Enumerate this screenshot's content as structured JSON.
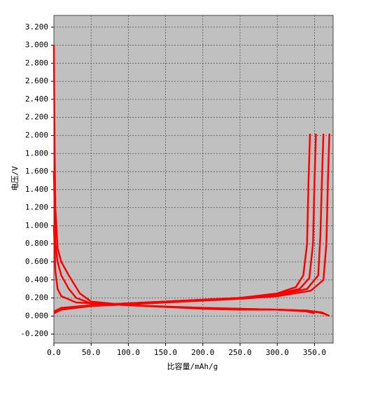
{
  "chart_data": {
    "type": "line",
    "x_label": "比容量/mAh/g",
    "y_label": "电压/V",
    "xlim": [
      0,
      375
    ],
    "ylim": [
      -0.3,
      3.33
    ],
    "xticks": [
      {
        "value": 0,
        "label": "0.0"
      },
      {
        "value": 50,
        "label": "50.0"
      },
      {
        "value": 100,
        "label": "100.0"
      },
      {
        "value": 150,
        "label": "150.0"
      },
      {
        "value": 200,
        "label": "200.0"
      },
      {
        "value": 250,
        "label": "250.0"
      },
      {
        "value": 300,
        "label": "300.0"
      },
      {
        "value": 350,
        "label": "350.0"
      }
    ],
    "yticks": [
      {
        "value": -0.2,
        "label": "-0.200"
      },
      {
        "value": 0,
        "label": "0.000"
      },
      {
        "value": 0.2,
        "label": "0.200"
      },
      {
        "value": 0.4,
        "label": "0.400"
      },
      {
        "value": 0.6,
        "label": "0.600"
      },
      {
        "value": 0.8,
        "label": "0.800"
      },
      {
        "value": 1,
        "label": "1.000"
      },
      {
        "value": 1.2,
        "label": "1.200"
      },
      {
        "value": 1.4,
        "label": "1.400"
      },
      {
        "value": 1.6,
        "label": "1.600"
      },
      {
        "value": 1.8,
        "label": "1.800"
      },
      {
        "value": 2,
        "label": "2.000"
      },
      {
        "value": 2.2,
        "label": "2.200"
      },
      {
        "value": 2.4,
        "label": "2.400"
      },
      {
        "value": 2.6,
        "label": "2.600"
      },
      {
        "value": 2.8,
        "label": "2.800"
      },
      {
        "value": 3,
        "label": "3.000"
      },
      {
        "value": 3.2,
        "label": "3.200"
      }
    ],
    "grid": true,
    "background": "#c0c0c0",
    "series": [
      {
        "color": "#ff0000",
        "x": [
          0,
          1,
          2,
          5,
          10,
          20,
          35,
          50,
          100,
          150,
          200,
          250,
          300,
          340,
          360,
          370
        ],
        "values": [
          3.0,
          1.8,
          1.2,
          0.75,
          0.6,
          0.45,
          0.25,
          0.16,
          0.12,
          0.1,
          0.08,
          0.07,
          0.07,
          0.06,
          0.04,
          0.0
        ]
      },
      {
        "color": "#ff0000",
        "x": [
          0,
          2,
          5,
          10,
          20,
          30,
          50,
          100,
          150,
          200,
          250,
          300,
          340,
          355,
          365
        ],
        "values": [
          1.6,
          0.8,
          0.6,
          0.45,
          0.3,
          0.2,
          0.14,
          0.12,
          0.1,
          0.09,
          0.08,
          0.07,
          0.06,
          0.04,
          0.02
        ]
      },
      {
        "color": "#ff0000",
        "x": [
          0,
          2,
          5,
          10,
          30,
          100,
          200,
          300,
          340,
          350
        ],
        "values": [
          1.0,
          0.5,
          0.3,
          0.22,
          0.15,
          0.12,
          0.09,
          0.07,
          0.05,
          0.03
        ]
      },
      {
        "color": "#ff0000",
        "x": [
          0,
          10,
          50,
          100,
          150,
          200,
          250,
          300,
          325,
          335,
          340,
          342,
          344
        ],
        "values": [
          0.05,
          0.09,
          0.12,
          0.14,
          0.16,
          0.18,
          0.2,
          0.25,
          0.32,
          0.45,
          0.8,
          1.5,
          2.02
        ]
      },
      {
        "color": "#ff0000",
        "x": [
          0,
          10,
          50,
          100,
          150,
          200,
          250,
          300,
          330,
          343,
          348,
          350,
          352
        ],
        "values": [
          0.04,
          0.08,
          0.12,
          0.14,
          0.16,
          0.18,
          0.2,
          0.24,
          0.3,
          0.42,
          0.8,
          1.5,
          2.02
        ]
      },
      {
        "color": "#ff0000",
        "x": [
          0,
          10,
          50,
          100,
          150,
          200,
          250,
          300,
          340,
          355,
          358,
          360,
          362
        ],
        "values": [
          0.03,
          0.08,
          0.12,
          0.14,
          0.16,
          0.18,
          0.2,
          0.23,
          0.3,
          0.45,
          0.9,
          1.5,
          2.02
        ]
      },
      {
        "color": "#ff0000",
        "x": [
          0,
          10,
          50,
          100,
          150,
          200,
          250,
          300,
          345,
          362,
          366,
          368,
          370
        ],
        "values": [
          0.03,
          0.07,
          0.11,
          0.13,
          0.15,
          0.17,
          0.19,
          0.22,
          0.28,
          0.4,
          0.8,
          1.5,
          2.02
        ]
      }
    ]
  }
}
